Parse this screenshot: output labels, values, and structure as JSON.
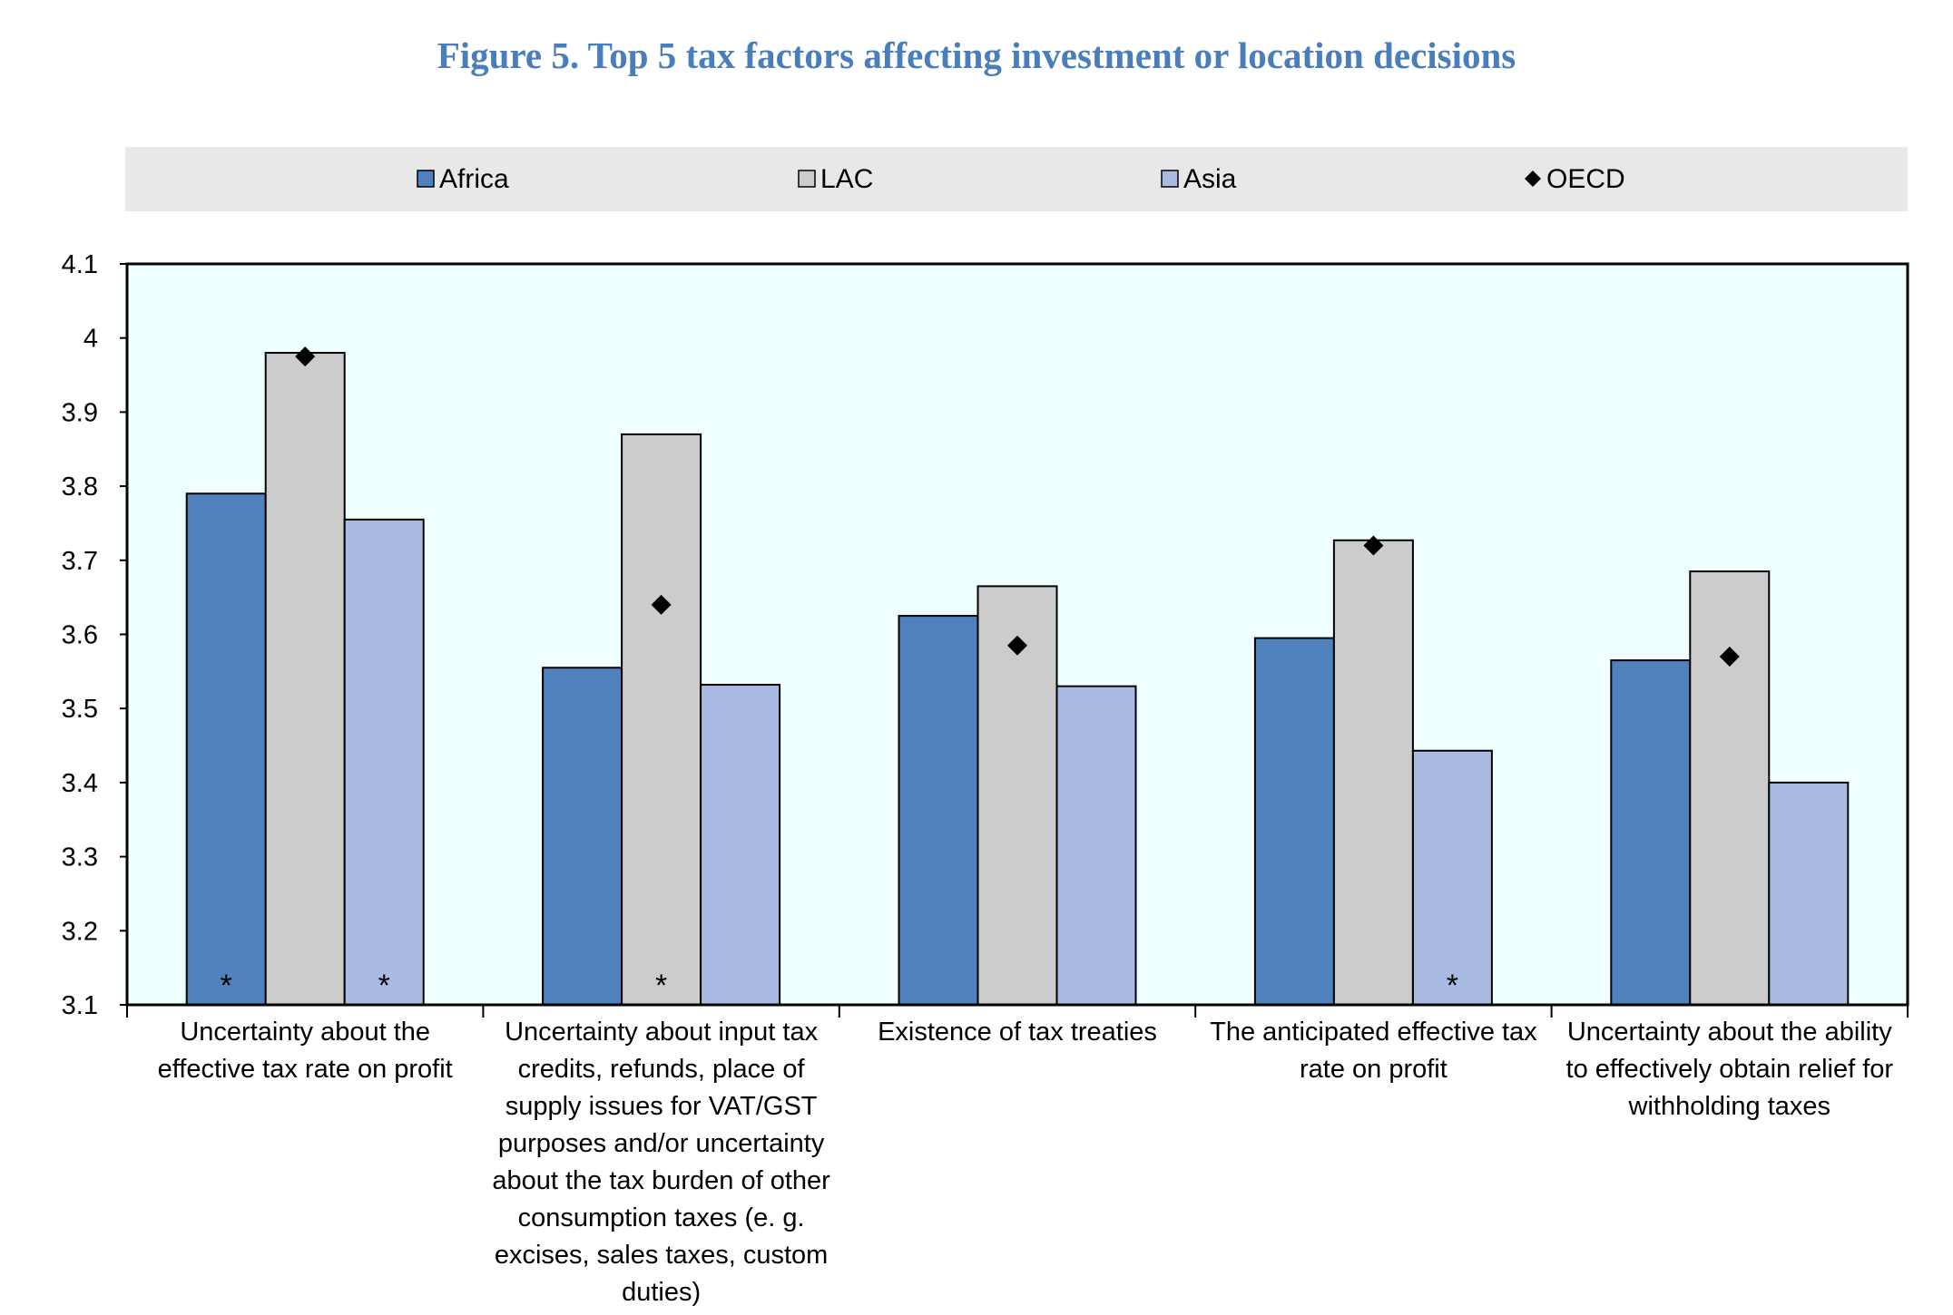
{
  "chart_data": {
    "type": "bar",
    "title": "Figure 5. Top 5 tax factors affecting investment or location decisions",
    "xlabel": "",
    "ylabel": "",
    "ylim": [
      3.1,
      4.1
    ],
    "yticks": [
      "3.1",
      "3.2",
      "3.3",
      "3.4",
      "3.5",
      "3.6",
      "3.7",
      "3.8",
      "3.9",
      "4",
      "4.1"
    ],
    "grid": false,
    "legend_position": "top",
    "categories": [
      [
        "Uncertainty about the",
        "effective tax rate on profit"
      ],
      [
        "Uncertainty about input tax",
        "credits, refunds, place of",
        "supply issues for VAT/GST",
        "purposes and/or uncertainty",
        "about the tax burden of other",
        "consumption taxes (e. g.",
        "excises, sales taxes, custom",
        "duties)"
      ],
      [
        "Existence of tax treaties"
      ],
      [
        "The anticipated effective tax",
        "rate on profit"
      ],
      [
        "Uncertainty about the ability",
        "to effectively obtain relief for",
        "withholding taxes"
      ]
    ],
    "series": [
      {
        "name": "Africa",
        "type": "bar",
        "color": "#4f81bd",
        "values": [
          3.79,
          3.555,
          3.625,
          3.595,
          3.565
        ],
        "marker_flags": [
          true,
          false,
          false,
          false,
          false
        ]
      },
      {
        "name": "LAC",
        "type": "bar",
        "color": "#cccccc",
        "values": [
          3.98,
          3.87,
          3.665,
          3.727,
          3.685
        ],
        "marker_flags": [
          false,
          true,
          false,
          false,
          false
        ]
      },
      {
        "name": "Asia",
        "type": "bar",
        "color": "#a9bbe3",
        "values": [
          3.755,
          3.532,
          3.53,
          3.443,
          3.4
        ],
        "marker_flags": [
          true,
          false,
          false,
          true,
          false
        ]
      },
      {
        "name": "OECD",
        "type": "marker",
        "color": "#000000",
        "values": [
          3.975,
          3.64,
          3.585,
          3.72,
          3.57
        ]
      }
    ],
    "annotation_symbol": "*",
    "plot_background": "#f0ffff",
    "legend_background": "#e8e8e8"
  }
}
